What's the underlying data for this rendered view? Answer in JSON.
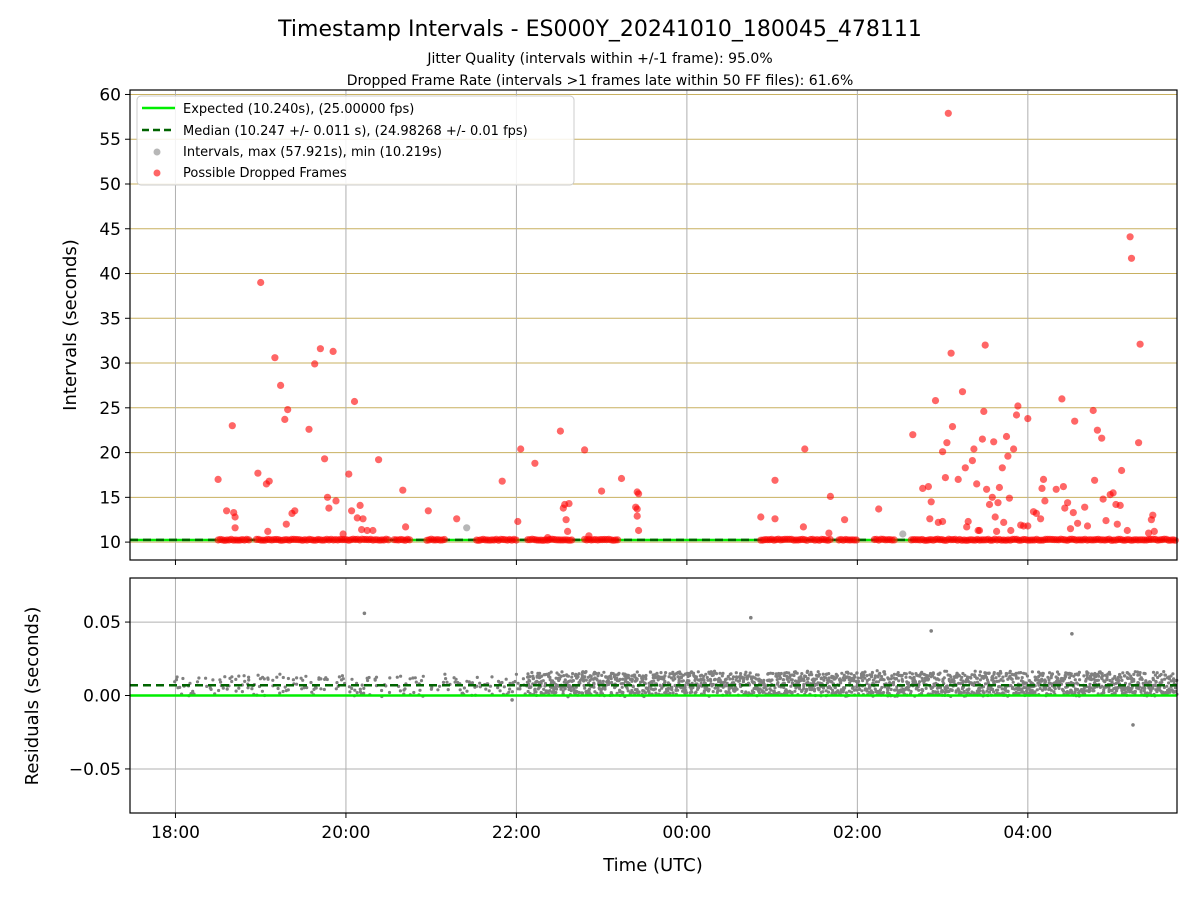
{
  "title": "Timestamp Intervals - ES000Y_20241010_180045_478111",
  "subtitle1": "Jitter Quality (intervals within +/-1 frame): 95.0%",
  "subtitle2": "Dropped Frame Rate (intervals >1 frames late within 50 FF files): 61.6%",
  "colors": {
    "expected": "#00ee00",
    "median": "#006400",
    "intervals": "#999999",
    "dropped": "#ff0000",
    "residuals": "#808080",
    "grid_minor": "#c8b060",
    "grid": "#b0b0b0"
  },
  "chart_data": [
    {
      "id": "intervals",
      "type": "scatter",
      "xlabel": "",
      "ylabel": "Intervals (seconds)",
      "ylim": [
        8,
        60.5
      ],
      "y_ticks": [
        10,
        15,
        20,
        25,
        30,
        35,
        40,
        45,
        50,
        55,
        60
      ],
      "x_range_hours": [
        "17:28",
        "05:45"
      ],
      "grid": true,
      "legend_position": "top-left",
      "legend": [
        "Expected (10.240s), (25.00000 fps)",
        "Median (10.247 +/- 0.011 s), (24.98268 +/- 0.01 fps)",
        "Intervals, max (57.921s), min (10.219s)",
        "Possible Dropped Frames"
      ],
      "expected_line": 10.24,
      "median_line": 10.247,
      "dropped_band_segments": [
        [
          "18:30",
          "18:53"
        ],
        [
          "18:57",
          "20:30"
        ],
        [
          "20:34",
          "20:45"
        ],
        [
          "20:57",
          "21:10"
        ],
        [
          "21:32",
          "22:00"
        ],
        [
          "22:08",
          "22:40"
        ],
        [
          "22:48",
          "23:12"
        ],
        [
          "00:52",
          "01:25"
        ],
        [
          "01:27",
          "01:42"
        ],
        [
          "01:47",
          "02:00"
        ],
        [
          "02:12",
          "02:26"
        ],
        [
          "02:38",
          "05:45"
        ]
      ],
      "intervals_points": [
        {
          "x": "21:25",
          "y": 11.6
        },
        {
          "x": "02:32",
          "y": 10.9
        }
      ],
      "dropped_points": [
        {
          "x": "18:30",
          "y": 17.0
        },
        {
          "x": "18:36",
          "y": 13.5
        },
        {
          "x": "18:40",
          "y": 23.0
        },
        {
          "x": "18:41",
          "y": 13.3
        },
        {
          "x": "18:42",
          "y": 12.8
        },
        {
          "x": "18:42",
          "y": 11.6
        },
        {
          "x": "19:00",
          "y": 39.0
        },
        {
          "x": "18:58",
          "y": 17.7
        },
        {
          "x": "19:04",
          "y": 16.5
        },
        {
          "x": "19:06",
          "y": 16.8
        },
        {
          "x": "19:05",
          "y": 11.2
        },
        {
          "x": "19:10",
          "y": 30.6
        },
        {
          "x": "19:14",
          "y": 27.5
        },
        {
          "x": "19:17",
          "y": 23.7
        },
        {
          "x": "19:19",
          "y": 24.8
        },
        {
          "x": "19:22",
          "y": 13.2
        },
        {
          "x": "19:24",
          "y": 13.5
        },
        {
          "x": "19:18",
          "y": 12.0
        },
        {
          "x": "19:34",
          "y": 22.6
        },
        {
          "x": "19:38",
          "y": 29.9
        },
        {
          "x": "19:42",
          "y": 31.6
        },
        {
          "x": "19:45",
          "y": 19.3
        },
        {
          "x": "19:47",
          "y": 15.0
        },
        {
          "x": "19:48",
          "y": 13.8
        },
        {
          "x": "19:51",
          "y": 31.3
        },
        {
          "x": "19:53",
          "y": 14.6
        },
        {
          "x": "19:58",
          "y": 10.9
        },
        {
          "x": "20:02",
          "y": 17.6
        },
        {
          "x": "20:04",
          "y": 13.5
        },
        {
          "x": "20:06",
          "y": 25.7
        },
        {
          "x": "20:08",
          "y": 12.7
        },
        {
          "x": "20:10",
          "y": 14.1
        },
        {
          "x": "20:12",
          "y": 12.6
        },
        {
          "x": "20:11",
          "y": 11.4
        },
        {
          "x": "20:15",
          "y": 11.3
        },
        {
          "x": "20:19",
          "y": 11.3
        },
        {
          "x": "20:23",
          "y": 19.2
        },
        {
          "x": "20:40",
          "y": 15.8
        },
        {
          "x": "20:42",
          "y": 11.7
        },
        {
          "x": "20:58",
          "y": 13.5
        },
        {
          "x": "21:18",
          "y": 12.6
        },
        {
          "x": "21:50",
          "y": 16.8
        },
        {
          "x": "22:01",
          "y": 12.3
        },
        {
          "x": "22:03",
          "y": 20.4
        },
        {
          "x": "22:13",
          "y": 18.8
        },
        {
          "x": "22:22",
          "y": 10.5
        },
        {
          "x": "22:31",
          "y": 22.4
        },
        {
          "x": "22:33",
          "y": 13.8
        },
        {
          "x": "22:34",
          "y": 14.2
        },
        {
          "x": "22:35",
          "y": 12.5
        },
        {
          "x": "22:36",
          "y": 11.2
        },
        {
          "x": "22:37",
          "y": 14.3
        },
        {
          "x": "22:48",
          "y": 20.3
        },
        {
          "x": "22:51",
          "y": 10.7
        },
        {
          "x": "23:00",
          "y": 15.7
        },
        {
          "x": "23:14",
          "y": 17.1
        },
        {
          "x": "23:25",
          "y": 15.6
        },
        {
          "x": "23:26",
          "y": 15.4
        },
        {
          "x": "23:24",
          "y": 13.9
        },
        {
          "x": "23:25",
          "y": 13.7
        },
        {
          "x": "23:25",
          "y": 12.9
        },
        {
          "x": "23:26",
          "y": 11.3
        },
        {
          "x": "00:52",
          "y": 12.8
        },
        {
          "x": "01:02",
          "y": 16.9
        },
        {
          "x": "01:02",
          "y": 12.6
        },
        {
          "x": "01:22",
          "y": 11.7
        },
        {
          "x": "01:23",
          "y": 20.4
        },
        {
          "x": "01:41",
          "y": 15.1
        },
        {
          "x": "01:40",
          "y": 11.0
        },
        {
          "x": "01:51",
          "y": 12.5
        },
        {
          "x": "02:15",
          "y": 13.7
        },
        {
          "x": "02:39",
          "y": 22.0
        },
        {
          "x": "02:46",
          "y": 16.0
        },
        {
          "x": "02:50",
          "y": 16.2
        },
        {
          "x": "02:52",
          "y": 14.5
        },
        {
          "x": "02:55",
          "y": 25.8
        },
        {
          "x": "02:51",
          "y": 12.6
        },
        {
          "x": "02:57",
          "y": 12.2
        },
        {
          "x": "03:00",
          "y": 20.1
        },
        {
          "x": "03:00",
          "y": 12.3
        },
        {
          "x": "03:02",
          "y": 17.2
        },
        {
          "x": "03:03",
          "y": 21.1
        },
        {
          "x": "03:04",
          "y": 57.9
        },
        {
          "x": "03:06",
          "y": 31.1
        },
        {
          "x": "03:07",
          "y": 22.9
        },
        {
          "x": "03:11",
          "y": 17.0
        },
        {
          "x": "03:14",
          "y": 26.8
        },
        {
          "x": "03:16",
          "y": 18.3
        },
        {
          "x": "03:17",
          "y": 11.7
        },
        {
          "x": "03:18",
          "y": 12.3
        },
        {
          "x": "03:21",
          "y": 19.1
        },
        {
          "x": "03:22",
          "y": 20.4
        },
        {
          "x": "03:24",
          "y": 16.5
        },
        {
          "x": "03:25",
          "y": 11.3
        },
        {
          "x": "03:26",
          "y": 11.3
        },
        {
          "x": "03:28",
          "y": 21.5
        },
        {
          "x": "03:29",
          "y": 24.6
        },
        {
          "x": "03:30",
          "y": 32.0
        },
        {
          "x": "03:31",
          "y": 15.9
        },
        {
          "x": "03:33",
          "y": 14.2
        },
        {
          "x": "03:35",
          "y": 15.0
        },
        {
          "x": "03:36",
          "y": 21.2
        },
        {
          "x": "03:37",
          "y": 12.8
        },
        {
          "x": "03:38",
          "y": 11.2
        },
        {
          "x": "03:39",
          "y": 14.4
        },
        {
          "x": "03:40",
          "y": 16.1
        },
        {
          "x": "03:42",
          "y": 18.3
        },
        {
          "x": "03:43",
          "y": 12.2
        },
        {
          "x": "03:45",
          "y": 21.8
        },
        {
          "x": "03:46",
          "y": 19.6
        },
        {
          "x": "03:47",
          "y": 14.9
        },
        {
          "x": "03:48",
          "y": 11.3
        },
        {
          "x": "03:50",
          "y": 20.4
        },
        {
          "x": "03:52",
          "y": 24.2
        },
        {
          "x": "03:53",
          "y": 25.2
        },
        {
          "x": "03:55",
          "y": 11.9
        },
        {
          "x": "03:57",
          "y": 11.8
        },
        {
          "x": "04:00",
          "y": 23.8
        },
        {
          "x": "04:00",
          "y": 11.8
        },
        {
          "x": "04:04",
          "y": 13.4
        },
        {
          "x": "04:06",
          "y": 13.2
        },
        {
          "x": "04:09",
          "y": 12.6
        },
        {
          "x": "04:10",
          "y": 16.0
        },
        {
          "x": "04:11",
          "y": 17.0
        },
        {
          "x": "04:12",
          "y": 14.6
        },
        {
          "x": "04:20",
          "y": 15.9
        },
        {
          "x": "04:24",
          "y": 26.0
        },
        {
          "x": "04:25",
          "y": 16.2
        },
        {
          "x": "04:26",
          "y": 13.8
        },
        {
          "x": "04:28",
          "y": 14.4
        },
        {
          "x": "04:30",
          "y": 11.5
        },
        {
          "x": "04:32",
          "y": 13.3
        },
        {
          "x": "04:33",
          "y": 23.5
        },
        {
          "x": "04:35",
          "y": 12.1
        },
        {
          "x": "04:40",
          "y": 13.9
        },
        {
          "x": "04:42",
          "y": 11.8
        },
        {
          "x": "04:46",
          "y": 24.7
        },
        {
          "x": "04:47",
          "y": 16.9
        },
        {
          "x": "04:49",
          "y": 22.5
        },
        {
          "x": "04:52",
          "y": 21.6
        },
        {
          "x": "04:53",
          "y": 14.8
        },
        {
          "x": "04:55",
          "y": 12.4
        },
        {
          "x": "04:58",
          "y": 15.3
        },
        {
          "x": "05:00",
          "y": 15.5
        },
        {
          "x": "05:02",
          "y": 14.2
        },
        {
          "x": "05:03",
          "y": 12.0
        },
        {
          "x": "05:05",
          "y": 14.1
        },
        {
          "x": "05:06",
          "y": 18.0
        },
        {
          "x": "05:10",
          "y": 11.3
        },
        {
          "x": "05:12",
          "y": 44.1
        },
        {
          "x": "05:13",
          "y": 41.7
        },
        {
          "x": "05:18",
          "y": 21.1
        },
        {
          "x": "05:19",
          "y": 32.1
        },
        {
          "x": "05:25",
          "y": 11.0
        },
        {
          "x": "05:27",
          "y": 12.5
        },
        {
          "x": "05:28",
          "y": 13.0
        },
        {
          "x": "05:29",
          "y": 11.2
        }
      ]
    },
    {
      "id": "residuals",
      "type": "scatter",
      "xlabel": "Time (UTC)",
      "ylabel": "Residuals (seconds)",
      "ylim": [
        -0.08,
        0.08
      ],
      "y_ticks": [
        -0.05,
        0.0,
        0.05
      ],
      "y_tick_labels": [
        "−0.05",
        "0.00",
        "0.05"
      ],
      "x_ticks": [
        "18:00",
        "20:00",
        "22:00",
        "00:00",
        "02:00",
        "04:00"
      ],
      "x_range_hours": [
        "17:28",
        "05:45"
      ],
      "grid": true,
      "expected_line": 0.0,
      "median_line": 0.007,
      "bands": [
        {
          "from": "18:00",
          "to": "22:08",
          "low": 0.0,
          "high": 0.014,
          "center": 0.007,
          "density": "sparse"
        },
        {
          "from": "22:08",
          "to": "05:45",
          "low": 0.0,
          "high": 0.016,
          "center": 0.008,
          "density": "dense"
        }
      ],
      "outliers": [
        {
          "x": "20:13",
          "y": 0.056
        },
        {
          "x": "21:57",
          "y": -0.003
        },
        {
          "x": "00:45",
          "y": 0.053
        },
        {
          "x": "02:52",
          "y": 0.044
        },
        {
          "x": "04:31",
          "y": 0.042
        },
        {
          "x": "05:14",
          "y": -0.02
        }
      ]
    }
  ]
}
